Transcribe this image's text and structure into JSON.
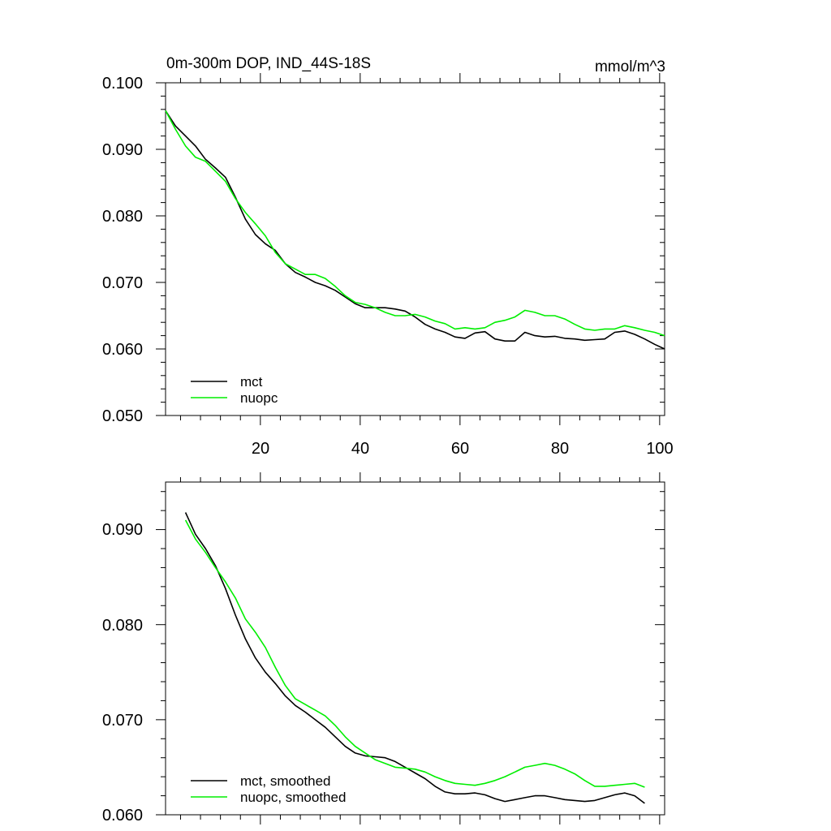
{
  "chart_data": [
    {
      "type": "line",
      "title": "0m-300m DOP, IND_44S-18S",
      "units": "mmol/m^3",
      "xlim": [
        1,
        101
      ],
      "ylim": [
        0.05,
        0.1
      ],
      "x_ticks": [
        "20",
        "40",
        "60",
        "80",
        "100"
      ],
      "y_ticks": [
        "0.050",
        "0.060",
        "0.070",
        "0.080",
        "0.090",
        "0.100"
      ],
      "legend": {
        "placement": "bottom-left",
        "entries": [
          "mct",
          "nuopc"
        ]
      },
      "series": [
        {
          "name": "mct",
          "color": "#000000",
          "x": [
            1,
            3,
            5,
            7,
            9,
            11,
            13,
            15,
            17,
            19,
            21,
            23,
            25,
            27,
            29,
            31,
            33,
            35,
            37,
            39,
            41,
            43,
            45,
            47,
            49,
            51,
            53,
            55,
            57,
            59,
            61,
            63,
            65,
            67,
            69,
            71,
            73,
            75,
            77,
            79,
            81,
            83,
            85,
            87,
            89,
            91,
            93,
            95,
            97,
            99,
            101
          ],
          "y": [
            0.0958,
            0.0935,
            0.092,
            0.0905,
            0.0885,
            0.0872,
            0.0858,
            0.0828,
            0.0795,
            0.0772,
            0.0758,
            0.0748,
            0.0728,
            0.0715,
            0.0708,
            0.07,
            0.0695,
            0.0688,
            0.0678,
            0.0668,
            0.0662,
            0.0662,
            0.0662,
            0.066,
            0.0657,
            0.0648,
            0.0637,
            0.063,
            0.0625,
            0.0618,
            0.0616,
            0.0624,
            0.0626,
            0.0615,
            0.0612,
            0.0612,
            0.0625,
            0.062,
            0.0618,
            0.0619,
            0.0616,
            0.0615,
            0.0613,
            0.0614,
            0.0615,
            0.0625,
            0.0627,
            0.0622,
            0.0615,
            0.0607,
            0.06
          ]
        },
        {
          "name": "nuopc",
          "color": "#00ee00",
          "x": [
            1,
            3,
            5,
            7,
            9,
            11,
            13,
            15,
            17,
            19,
            21,
            23,
            25,
            27,
            29,
            31,
            33,
            35,
            37,
            39,
            41,
            43,
            45,
            47,
            49,
            51,
            53,
            55,
            57,
            59,
            61,
            63,
            65,
            67,
            69,
            71,
            73,
            75,
            77,
            79,
            81,
            83,
            85,
            87,
            89,
            91,
            93,
            95,
            97,
            99,
            101
          ],
          "y": [
            0.0958,
            0.093,
            0.0905,
            0.0888,
            0.0882,
            0.0867,
            0.0852,
            0.0826,
            0.0805,
            0.0788,
            0.077,
            0.0745,
            0.0728,
            0.072,
            0.0712,
            0.0712,
            0.0706,
            0.0694,
            0.068,
            0.067,
            0.0667,
            0.0662,
            0.0655,
            0.065,
            0.065,
            0.0652,
            0.0648,
            0.0642,
            0.0638,
            0.063,
            0.0632,
            0.063,
            0.0632,
            0.064,
            0.0643,
            0.0648,
            0.0658,
            0.0655,
            0.065,
            0.065,
            0.0645,
            0.0637,
            0.063,
            0.0628,
            0.063,
            0.063,
            0.0635,
            0.0632,
            0.0628,
            0.0625,
            0.062
          ]
        }
      ]
    },
    {
      "type": "line",
      "xlim": [
        1,
        101
      ],
      "ylim": [
        0.06,
        0.095
      ],
      "x_ticks": [],
      "y_ticks": [
        "0.060",
        "0.070",
        "0.080",
        "0.090"
      ],
      "legend": {
        "placement": "bottom-left",
        "entries": [
          "mct, smoothed",
          "nuopc, smoothed"
        ]
      },
      "series": [
        {
          "name": "mct, smoothed",
          "color": "#000000",
          "x": [
            5,
            7,
            9,
            11,
            13,
            15,
            17,
            19,
            21,
            23,
            25,
            27,
            29,
            31,
            33,
            35,
            37,
            39,
            41,
            43,
            45,
            47,
            49,
            51,
            53,
            55,
            57,
            59,
            61,
            63,
            65,
            67,
            69,
            71,
            73,
            75,
            77,
            79,
            81,
            83,
            85,
            87,
            89,
            91,
            93,
            95,
            97
          ],
          "y": [
            0.0918,
            0.0895,
            0.088,
            0.0862,
            0.0838,
            0.081,
            0.0785,
            0.0765,
            0.075,
            0.0738,
            0.0725,
            0.0715,
            0.0708,
            0.07,
            0.0692,
            0.0682,
            0.0672,
            0.0665,
            0.0662,
            0.0661,
            0.066,
            0.0656,
            0.065,
            0.0644,
            0.0638,
            0.063,
            0.0624,
            0.0622,
            0.0622,
            0.0623,
            0.0621,
            0.0617,
            0.0614,
            0.0616,
            0.0618,
            0.062,
            0.062,
            0.0618,
            0.0616,
            0.0615,
            0.0614,
            0.0615,
            0.0618,
            0.0621,
            0.0623,
            0.062,
            0.0612
          ]
        },
        {
          "name": "nuopc, smoothed",
          "color": "#00ee00",
          "x": [
            5,
            7,
            9,
            11,
            13,
            15,
            17,
            19,
            21,
            23,
            25,
            27,
            29,
            31,
            33,
            35,
            37,
            39,
            41,
            43,
            45,
            47,
            49,
            51,
            53,
            55,
            57,
            59,
            61,
            63,
            65,
            67,
            69,
            71,
            73,
            75,
            77,
            79,
            81,
            83,
            85,
            87,
            89,
            91,
            93,
            95,
            97
          ],
          "y": [
            0.091,
            0.089,
            0.0876,
            0.086,
            0.0845,
            0.0828,
            0.0806,
            0.0792,
            0.0776,
            0.0755,
            0.0736,
            0.0722,
            0.0716,
            0.071,
            0.0704,
            0.0694,
            0.0682,
            0.0672,
            0.0665,
            0.0658,
            0.0654,
            0.065,
            0.0649,
            0.0648,
            0.0645,
            0.064,
            0.0636,
            0.0633,
            0.0632,
            0.0631,
            0.0633,
            0.0636,
            0.064,
            0.0645,
            0.065,
            0.0652,
            0.0654,
            0.0652,
            0.0648,
            0.0643,
            0.0636,
            0.063,
            0.063,
            0.0631,
            0.0632,
            0.0633,
            0.0629
          ]
        }
      ]
    }
  ]
}
